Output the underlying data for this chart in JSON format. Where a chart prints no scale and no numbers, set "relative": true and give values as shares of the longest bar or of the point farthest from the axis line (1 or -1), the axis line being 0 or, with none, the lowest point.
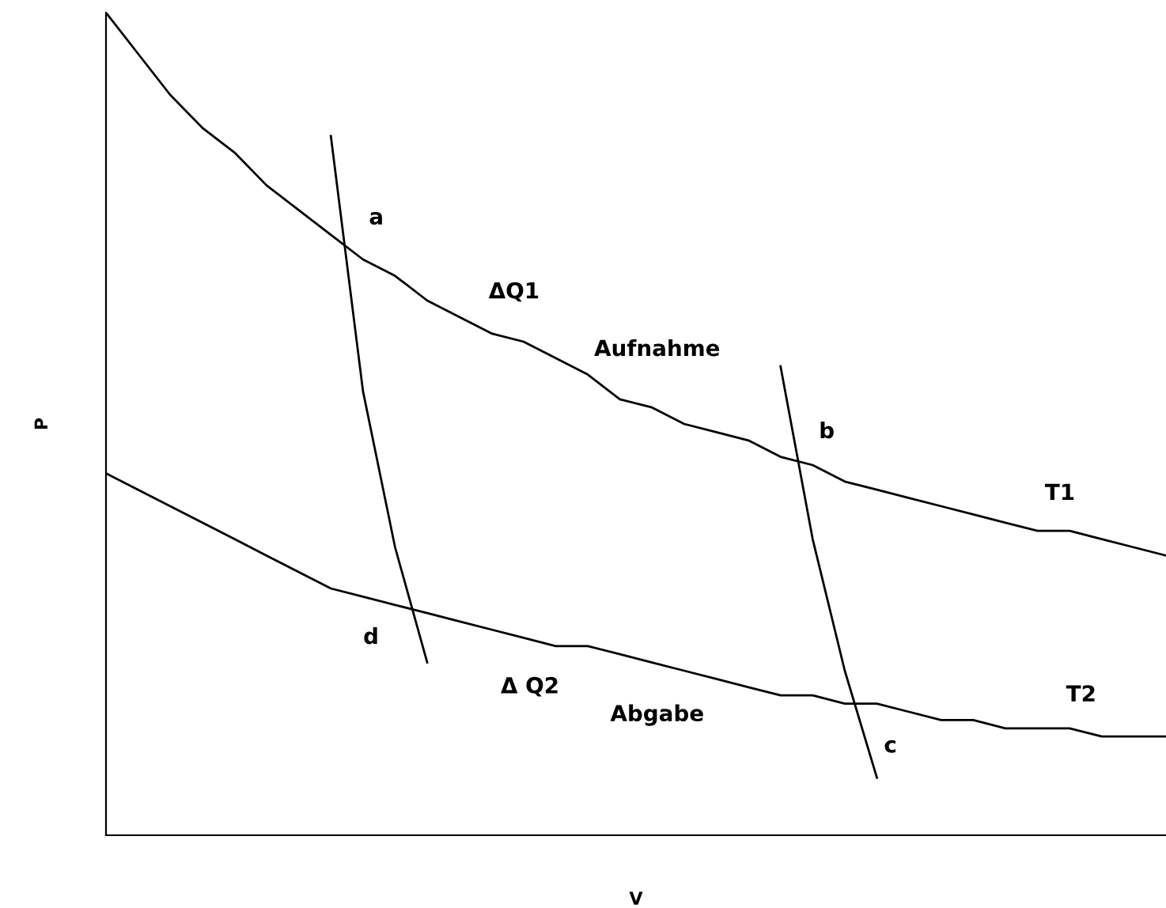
{
  "chart_data": {
    "type": "line",
    "relative": true,
    "xlabel": "V",
    "ylabel": "P",
    "grid": false,
    "legend": false,
    "marker": "none",
    "line_style": "solid",
    "categories": [
      null,
      null,
      null,
      null,
      null,
      null,
      null,
      null,
      null,
      null,
      null,
      null,
      null,
      null,
      null,
      null,
      null,
      null,
      null,
      null,
      null,
      null,
      null,
      null,
      null,
      null,
      null,
      null,
      null,
      null,
      null,
      null,
      null,
      null
    ],
    "series": [
      {
        "name": "T1",
        "color": "#000000",
        "values": [
          1.0,
          0.95,
          0.9,
          0.86,
          0.83,
          0.79,
          0.76,
          0.73,
          0.7,
          0.68,
          0.65,
          0.63,
          0.61,
          0.6,
          0.58,
          0.56,
          0.53,
          0.52,
          0.5,
          0.49,
          0.48,
          0.46,
          0.45,
          0.43,
          0.42,
          0.41,
          0.4,
          0.39,
          0.38,
          0.37,
          0.37,
          0.36,
          0.35,
          0.34
        ]
      },
      {
        "name": "T2",
        "color": "#000000",
        "values": [
          0.44,
          0.42,
          0.4,
          0.38,
          0.36,
          0.34,
          0.32,
          0.3,
          0.29,
          0.28,
          0.27,
          0.26,
          0.25,
          0.24,
          0.23,
          0.23,
          0.22,
          0.21,
          0.2,
          0.19,
          0.18,
          0.17,
          0.17,
          0.16,
          0.16,
          0.15,
          0.14,
          0.14,
          0.13,
          0.13,
          0.13,
          0.12,
          0.12,
          0.12
        ]
      },
      {
        "color": "#000000",
        "values": [
          null,
          null,
          null,
          null,
          null,
          null,
          null,
          0.85,
          0.54,
          0.35,
          0.21,
          null,
          null,
          null,
          null,
          null,
          null,
          null,
          null,
          null,
          null,
          null,
          null,
          null,
          null,
          null,
          null,
          null,
          null,
          null,
          null,
          null,
          null,
          null
        ]
      },
      {
        "color": "#000000",
        "values": [
          null,
          null,
          null,
          null,
          null,
          null,
          null,
          null,
          null,
          null,
          null,
          null,
          null,
          null,
          null,
          null,
          null,
          null,
          null,
          null,
          null,
          0.57,
          0.36,
          0.2,
          0.07,
          null,
          null,
          null,
          null,
          null,
          null,
          null,
          null,
          null
        ]
      }
    ],
    "annotations": [
      "a",
      "ΔQ1",
      "Aufnahme",
      "b",
      "d",
      "Δ Q2",
      "Abgabe",
      "c"
    ]
  }
}
